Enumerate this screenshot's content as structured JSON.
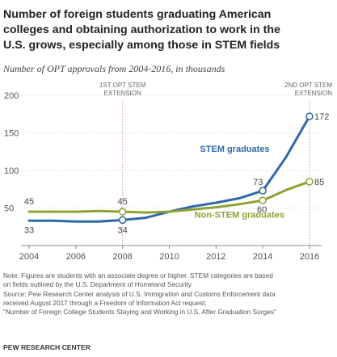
{
  "header": {
    "title_lines": [
      "Number of foreign students graduating American",
      "colleges and obtaining authorization to work in the",
      "U.S. grows, especially among those in STEM fields"
    ],
    "subtitle": "Number of OPT approvals from 2004-2016, in thousands"
  },
  "chart_data": {
    "type": "line",
    "title": "Number of foreign students graduating American colleges and obtaining authorization to work in the U.S. grows, especially among those in STEM fields",
    "subtitle": "Number of OPT approvals from 2004-2016, in thousands",
    "xlabel": "",
    "ylabel": "",
    "xlim": [
      2004,
      2016
    ],
    "ylim": [
      0,
      200
    ],
    "x_ticks": [
      2004,
      2006,
      2008,
      2010,
      2012,
      2014,
      2016
    ],
    "x_tick_labels": [
      "2004",
      "2006",
      "2008",
      "2010",
      "2012",
      "2014",
      "2016"
    ],
    "y_ticks": [
      50,
      100,
      150,
      200
    ],
    "y_tick_labels": [
      "50",
      "100",
      "150",
      "200"
    ],
    "grid": "horizontal",
    "series": [
      {
        "name": "STEM graduates",
        "color": "#2e6aa8",
        "x": [
          2004,
          2005,
          2006,
          2007,
          2008,
          2009,
          2010,
          2011,
          2012,
          2013,
          2014,
          2015,
          2016
        ],
        "y": [
          33,
          33,
          32,
          32,
          34,
          37,
          45,
          52,
          57,
          63,
          73,
          118,
          172
        ]
      },
      {
        "name": "Non-STEM graduates",
        "color": "#8fa035",
        "x": [
          2004,
          2005,
          2006,
          2007,
          2008,
          2009,
          2010,
          2011,
          2012,
          2013,
          2014,
          2015,
          2016
        ],
        "y": [
          45,
          45,
          45,
          46,
          45,
          44,
          45,
          48,
          51,
          55,
          60,
          74,
          85
        ]
      }
    ],
    "point_labels": [
      {
        "series": 0,
        "x": 2004,
        "y": 33,
        "text": "33"
      },
      {
        "series": 0,
        "x": 2008,
        "y": 34,
        "text": "34"
      },
      {
        "series": 0,
        "x": 2014,
        "y": 73,
        "text": "73"
      },
      {
        "series": 0,
        "x": 2016,
        "y": 172,
        "text": "172"
      },
      {
        "series": 1,
        "x": 2004,
        "y": 45,
        "text": "45"
      },
      {
        "series": 1,
        "x": 2008,
        "y": 45,
        "text": "45"
      },
      {
        "series": 1,
        "x": 2014,
        "y": 60,
        "text": "60"
      },
      {
        "series": 1,
        "x": 2016,
        "y": 85,
        "text": "85"
      }
    ],
    "marked_points": [
      {
        "series": 0,
        "x": 2008,
        "y": 34
      },
      {
        "series": 0,
        "x": 2014,
        "y": 73
      },
      {
        "series": 0,
        "x": 2016,
        "y": 172
      },
      {
        "series": 1,
        "x": 2008,
        "y": 45
      },
      {
        "series": 1,
        "x": 2014,
        "y": 60
      },
      {
        "series": 1,
        "x": 2016,
        "y": 85
      }
    ],
    "series_labels": [
      {
        "series": 0,
        "text": "STEM graduates"
      },
      {
        "series": 1,
        "text": "Non-STEM graduates"
      }
    ],
    "reference_lines": [
      {
        "x": 2008,
        "lines": [
          "1ST OPT STEM",
          "EXTENSION"
        ]
      },
      {
        "x": 2016,
        "lines": [
          "2ND  OPT STEM",
          "EXTENSION"
        ]
      }
    ]
  },
  "footer": {
    "notes": [
      "Note: Figures are students with an associate degree or higher. STEM categories are based",
      "on fields outlined by the U.S. Department of Homeland Security.",
      "Source: Pew Research Center analysis of U.S. Immigration and Customs Enforcement data",
      "received August 2017 through a Freedom of Information Act request.",
      "\"Number of Foreign College Students Staying and Working in U.S. After Graduation Surges\""
    ],
    "brand": "PEW RESEARCH CENTER"
  }
}
